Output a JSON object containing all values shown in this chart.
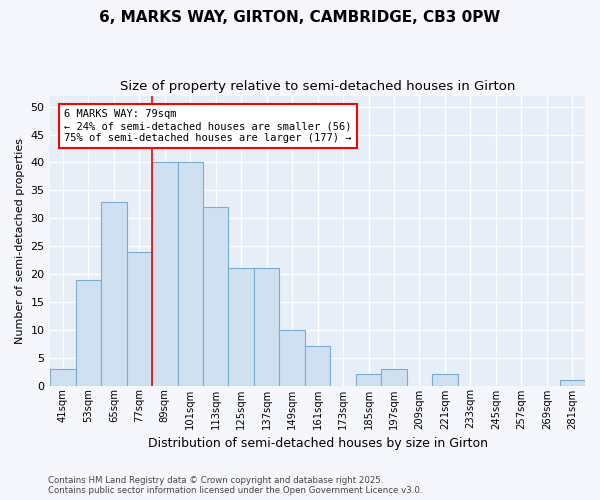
{
  "title": "6, MARKS WAY, GIRTON, CAMBRIDGE, CB3 0PW",
  "subtitle": "Size of property relative to semi-detached houses in Girton",
  "xlabel": "Distribution of semi-detached houses by size in Girton",
  "ylabel": "Number of semi-detached properties",
  "categories": [
    "41sqm",
    "53sqm",
    "65sqm",
    "77sqm",
    "89sqm",
    "101sqm",
    "113sqm",
    "125sqm",
    "137sqm",
    "149sqm",
    "161sqm",
    "173sqm",
    "185sqm",
    "197sqm",
    "209sqm",
    "221sqm",
    "233sqm",
    "245sqm",
    "257sqm",
    "269sqm",
    "281sqm"
  ],
  "values": [
    3,
    19,
    33,
    24,
    40,
    40,
    32,
    21,
    21,
    10,
    7,
    0,
    2,
    3,
    0,
    2,
    0,
    0,
    0,
    0,
    1
  ],
  "bar_color": "#cfe0f0",
  "bar_edge_color": "#7aaed0",
  "vline_x": 3.5,
  "vline_label": "6 MARKS WAY: 79sqm",
  "annotation_smaller": "← 24% of semi-detached houses are smaller (56)",
  "annotation_larger": "75% of semi-detached houses are larger (177) →",
  "ylim": [
    0,
    52
  ],
  "yticks": [
    0,
    5,
    10,
    15,
    20,
    25,
    30,
    35,
    40,
    45,
    50
  ],
  "plot_bg_color": "#e8eef8",
  "fig_bg_color": "#f5f7fc",
  "grid_color": "#ffffff",
  "footer_line1": "Contains HM Land Registry data © Crown copyright and database right 2025.",
  "footer_line2": "Contains public sector information licensed under the Open Government Licence v3.0.",
  "title_fontsize": 11,
  "subtitle_fontsize": 9.5
}
